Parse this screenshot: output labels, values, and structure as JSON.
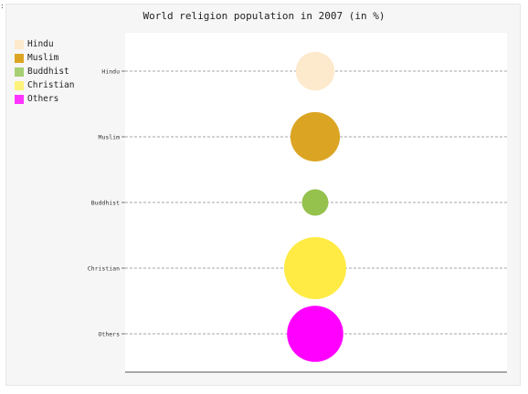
{
  "corner_mark": ":",
  "chart_data": {
    "type": "bubble",
    "title": "World religion population in 2007 (in %)",
    "categories": [
      "Hindu",
      "Muslim",
      "Buddhist",
      "Christian",
      "Others"
    ],
    "values": [
      13,
      21,
      6,
      33,
      27
    ],
    "colors": [
      "#fde9cc",
      "#dba523",
      "#95c14d",
      "#ffeb44",
      "#ff00ff"
    ],
    "legend": {
      "position": "top-left",
      "items": [
        {
          "label": "Hindu",
          "color": "#fde9cc"
        },
        {
          "label": "Muslim",
          "color": "#dba523"
        },
        {
          "label": "Buddhist",
          "color": "#a7cf73"
        },
        {
          "label": "Christian",
          "color": "#fff27a"
        },
        {
          "label": "Others",
          "color": "#ff33ff"
        }
      ]
    },
    "grid": "dashed horizontal"
  }
}
